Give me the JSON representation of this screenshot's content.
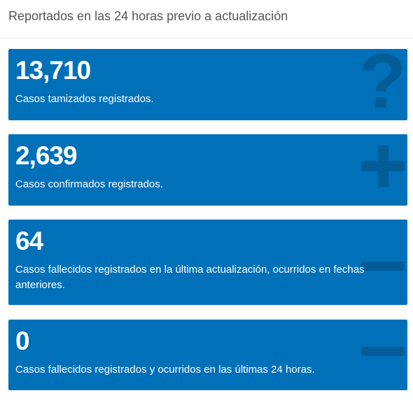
{
  "header": {
    "title": "Reportados en las 24 horas previo a actualización"
  },
  "cards": [
    {
      "number": "13,710",
      "label": "Casos tamizados registrados."
    },
    {
      "number": "2,639",
      "label": "Casos confirmados registrados."
    },
    {
      "number": "64",
      "label": "Casos fallecidos registrados en la última actualización, ocurridos en fechas anteriores."
    },
    {
      "number": "0",
      "label": "Casos fallecidos registrados y ocurridos en las últimas 24 horas."
    }
  ]
}
